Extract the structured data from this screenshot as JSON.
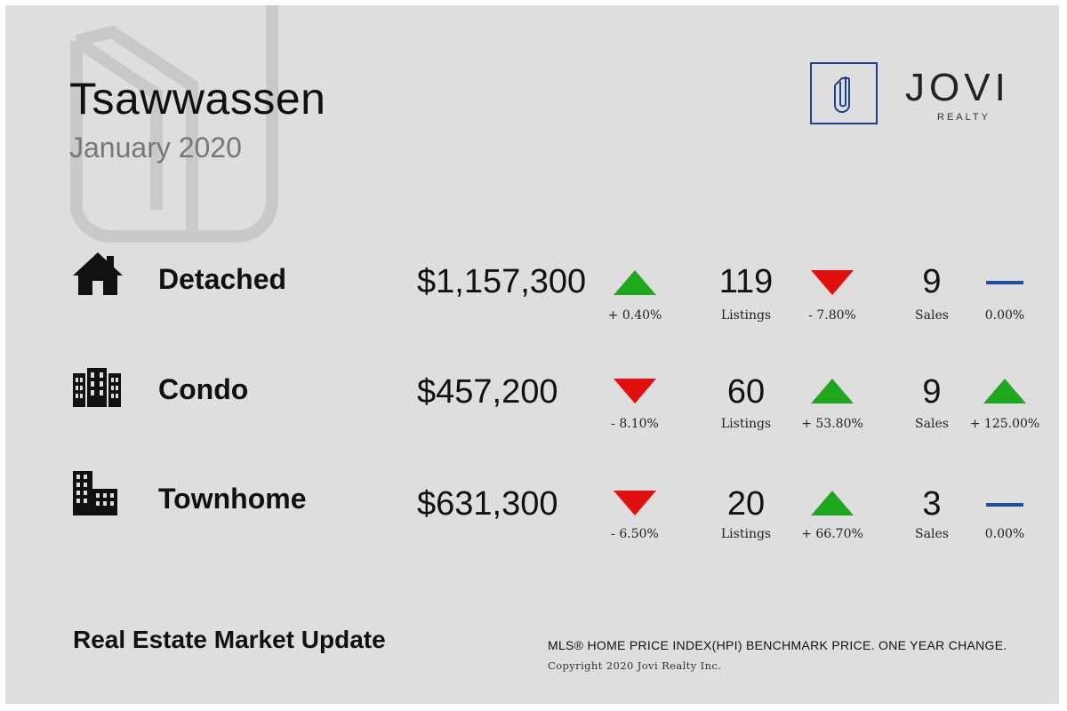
{
  "header": {
    "title": "Tsawwassen",
    "subtitle": "January 2020"
  },
  "brand": {
    "name": "JOVI",
    "tagline": "REALTY",
    "accent_color": "#1f3f8f"
  },
  "colors": {
    "up": "#1ea81e",
    "down": "#e01010",
    "flat": "#1f4fa3"
  },
  "rows": [
    {
      "icon": "house-icon",
      "type": "Detached",
      "price": "$1,157,300",
      "price_trend": "up",
      "price_change": "+ 0.40%",
      "listings": "119",
      "listings_label": "Listings",
      "listings_trend": "down",
      "listings_change": "- 7.80%",
      "sales": "9",
      "sales_label": "Sales",
      "sales_trend": "flat",
      "sales_change": "0.00%"
    },
    {
      "icon": "condo-building-icon",
      "type": "Condo",
      "price": "$457,200",
      "price_trend": "down",
      "price_change": "- 8.10%",
      "listings": "60",
      "listings_label": "Listings",
      "listings_trend": "up",
      "listings_change": "+ 53.80%",
      "sales": "9",
      "sales_label": "Sales",
      "sales_trend": "up",
      "sales_change": "+ 125.00%"
    },
    {
      "icon": "townhome-building-icon",
      "type": "Townhome",
      "price": "$631,300",
      "price_trend": "down",
      "price_change": "- 6.50%",
      "listings": "20",
      "listings_label": "Listings",
      "listings_trend": "up",
      "listings_change": "+ 66.70%",
      "sales": "3",
      "sales_label": "Sales",
      "sales_trend": "flat",
      "sales_change": "0.00%"
    }
  ],
  "footer": {
    "title": "Real Estate Market Update",
    "note": "MLS® HOME PRICE INDEX(HPI) BENCHMARK PRICE. ONE YEAR CHANGE.",
    "copyright": "Copyright 2020 Jovi Realty Inc."
  }
}
